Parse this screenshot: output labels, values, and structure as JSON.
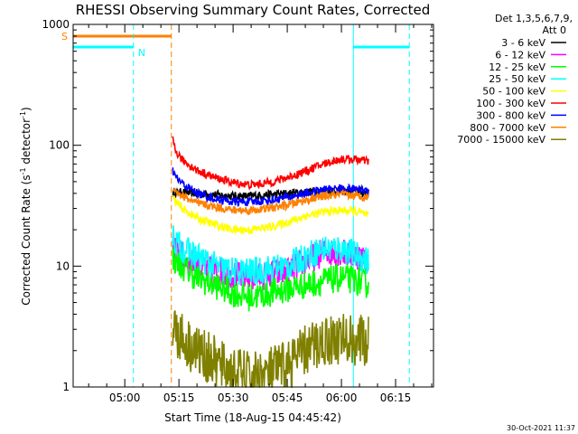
{
  "chart_data": {
    "type": "line",
    "title": "RHESSI Observing Summary Count Rates, Corrected",
    "xlabel": "Start Time (18-Aug-15 04:45:42)",
    "ylabel_main": "Corrected Count Rate (s",
    "ylabel_sup1": "-1",
    "ylabel_mid": " detector",
    "ylabel_sup2": "-1",
    "ylabel_end": ")",
    "y_scale": "log",
    "ylim": [
      1,
      1000
    ],
    "y_ticks": [
      {
        "value": 1,
        "label": "1"
      },
      {
        "value": 10,
        "label": "10"
      },
      {
        "value": 100,
        "label": "100"
      },
      {
        "value": 1000,
        "label": "1000"
      }
    ],
    "xlim_minutes": [
      285.7,
      385.5
    ],
    "x_ticks": [
      {
        "minute": 300,
        "label": "05:00"
      },
      {
        "minute": 315,
        "label": "05:15"
      },
      {
        "minute": 330,
        "label": "05:30"
      },
      {
        "minute": 345,
        "label": "05:45"
      },
      {
        "minute": 360,
        "label": "06:00"
      },
      {
        "minute": 375,
        "label": "06:15"
      }
    ],
    "legend_header": [
      "Det 1,3,5,6,7,9,",
      "Att 0"
    ],
    "footer": "30-Oct-2021 11:37",
    "flags": [
      {
        "label": "S",
        "color": "#ff8000",
        "start": 285.7,
        "end": 312.9,
        "value": 800
      },
      {
        "label": "N",
        "color": "#00ffff",
        "start": 285.7,
        "end": 302.4,
        "value": 650
      },
      {
        "label": "",
        "color": "#00ffff",
        "start": 363.3,
        "end": 378.8,
        "value": 650
      }
    ],
    "vlines": [
      {
        "minute": 302.4,
        "color": "#00ffff",
        "style": "dashed"
      },
      {
        "minute": 312.9,
        "color": "#ff8000",
        "style": "dashed"
      },
      {
        "minute": 363.3,
        "color": "#00ffff",
        "style": "solid"
      },
      {
        "minute": 378.8,
        "color": "#00ffff",
        "style": "dashed"
      }
    ],
    "series": [
      {
        "name": "3 - 6 keV",
        "color": "#000000",
        "t": [
          313.3,
          314,
          316,
          320,
          325,
          330,
          335,
          340,
          345,
          350,
          355,
          360,
          365,
          367.5
        ],
        "values": [
          40,
          40,
          41,
          40,
          39,
          38,
          38,
          39,
          40,
          41,
          42,
          42,
          41,
          40
        ]
      },
      {
        "name": "6 - 12 keV",
        "color": "#ff00ff",
        "t": [
          313.3,
          314,
          316,
          320,
          325,
          330,
          335,
          340,
          345,
          350,
          355,
          360,
          365,
          367.5
        ],
        "values": [
          16,
          14,
          12,
          10,
          9,
          8.5,
          8,
          8.5,
          9,
          11,
          13,
          13,
          12,
          11
        ]
      },
      {
        "name": "12 - 25 keV",
        "color": "#00ff00",
        "t": [
          313.3,
          314,
          316,
          320,
          325,
          330,
          335,
          340,
          345,
          350,
          355,
          360,
          365,
          367.5
        ],
        "values": [
          12,
          11,
          10,
          8,
          7,
          6,
          5.5,
          6,
          6.5,
          7,
          7.5,
          8,
          7.5,
          7
        ]
      },
      {
        "name": "25 - 50 keV",
        "color": "#00ffff",
        "t": [
          313.3,
          314,
          316,
          320,
          325,
          330,
          335,
          340,
          345,
          350,
          355,
          360,
          365,
          367.5
        ],
        "values": [
          18,
          16,
          14,
          12,
          10,
          9,
          9,
          9.5,
          10,
          12,
          14,
          14,
          12,
          11
        ]
      },
      {
        "name": "50 - 100 keV",
        "color": "#ffff00",
        "t": [
          313.3,
          314,
          316,
          320,
          325,
          330,
          335,
          340,
          345,
          350,
          355,
          360,
          365,
          367.5
        ],
        "values": [
          38,
          34,
          30,
          25,
          22,
          20,
          20,
          21,
          23,
          26,
          28,
          29,
          28,
          26
        ]
      },
      {
        "name": "100 - 300 keV",
        "color": "#ff0000",
        "t": [
          313.3,
          314,
          316,
          320,
          325,
          330,
          335,
          340,
          345,
          350,
          355,
          360,
          365,
          367.5
        ],
        "values": [
          110,
          90,
          75,
          62,
          54,
          49,
          47,
          49,
          54,
          61,
          70,
          77,
          76,
          73
        ]
      },
      {
        "name": "300 - 800 keV",
        "color": "#0000ff",
        "t": [
          313.3,
          314,
          316,
          320,
          325,
          330,
          335,
          340,
          345,
          350,
          355,
          360,
          365,
          367.5
        ],
        "values": [
          62,
          55,
          48,
          40,
          36,
          34,
          34,
          35,
          37,
          40,
          43,
          44,
          43,
          42
        ]
      },
      {
        "name": "800 - 7000 keV",
        "color": "#ff8000",
        "t": [
          313.3,
          314,
          316,
          320,
          325,
          330,
          335,
          340,
          345,
          350,
          355,
          360,
          365,
          367.5
        ],
        "values": [
          45,
          42,
          38,
          33,
          31,
          29,
          29,
          30,
          32,
          35,
          38,
          39,
          38,
          37
        ]
      },
      {
        "name": "7000 - 15000 keV",
        "color": "#808000",
        "t": [
          313.3,
          314,
          316,
          320,
          325,
          330,
          335,
          340,
          345,
          350,
          355,
          360,
          365,
          367.5
        ],
        "values": [
          3.5,
          3,
          2.5,
          2,
          1.6,
          1.3,
          1.2,
          1.3,
          1.5,
          2,
          2.4,
          2.5,
          2.4,
          2.3
        ]
      }
    ]
  }
}
